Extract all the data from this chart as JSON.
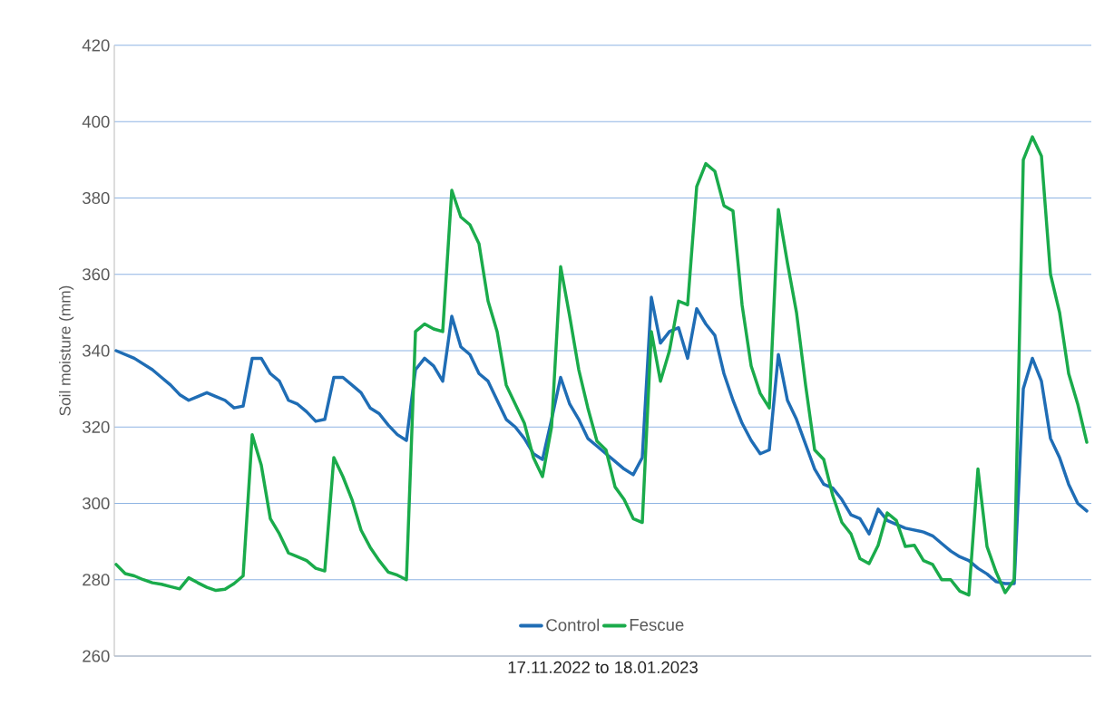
{
  "chart_data": {
    "type": "line",
    "xlabel": "17.11.2022 to 18.01.2023",
    "ylabel": "Soil moisture (mm)",
    "categories": [
      null,
      null,
      null,
      null,
      null,
      null,
      null,
      null,
      null,
      null,
      null,
      null,
      null,
      null,
      null,
      null,
      null,
      null,
      null,
      null,
      null,
      null,
      null,
      null,
      null,
      null,
      null,
      null,
      null,
      null,
      null,
      null,
      null,
      null,
      null,
      null,
      null,
      null,
      null,
      null,
      null,
      null,
      null,
      null,
      null,
      null,
      null,
      null,
      null,
      null,
      null,
      null,
      null,
      null,
      null,
      null,
      null,
      null,
      null,
      null,
      null,
      null,
      null,
      null,
      null,
      null,
      null,
      null,
      null,
      null,
      null,
      null,
      null,
      null,
      null,
      null,
      null,
      null,
      null,
      null,
      null,
      null,
      null,
      null,
      null,
      null,
      null,
      null,
      null,
      null,
      null,
      null,
      null,
      null,
      null,
      null,
      null,
      null,
      null,
      null,
      null,
      null,
      null,
      null,
      null,
      null,
      null,
      null
    ],
    "series": [
      {
        "name": "Control",
        "color": "#1f6db5",
        "values": [
          340,
          339,
          338,
          336.5,
          335,
          333,
          331,
          328.5,
          327,
          328,
          329,
          328,
          327,
          325,
          325.5,
          338,
          338,
          334,
          332,
          327,
          326,
          324,
          321.5,
          322,
          333,
          333,
          331,
          329,
          325,
          323.5,
          320.5,
          318,
          316.5,
          335,
          338,
          336,
          332,
          349,
          341,
          339,
          334,
          332,
          327,
          322,
          320,
          317,
          313,
          311.5,
          322,
          333,
          326,
          322,
          317,
          315,
          313,
          311,
          309,
          307.5,
          312,
          354,
          342,
          345,
          346,
          338,
          351,
          347,
          344,
          334,
          327,
          321,
          316.5,
          313,
          314,
          339,
          327,
          322,
          315.5,
          309,
          305,
          304,
          301,
          297,
          296,
          292,
          298.5,
          295.5,
          294.5,
          293.5,
          293,
          292.5,
          291.5,
          289.5,
          287.5,
          286,
          285,
          283,
          281.5,
          279.5,
          279,
          279,
          330,
          338,
          332,
          317,
          312,
          305,
          300,
          298
        ]
      },
      {
        "name": "Fescue",
        "color": "#1aab4b",
        "values": [
          284,
          281.6,
          281,
          280,
          279.2,
          278.8,
          278.2,
          277.6,
          280.5,
          279.2,
          278,
          277.2,
          277.5,
          279,
          281,
          318,
          310,
          296,
          292,
          287,
          286,
          285,
          283,
          282.3,
          312,
          307,
          301,
          293,
          288.5,
          285,
          282,
          281.2,
          280,
          345,
          347,
          345.7,
          345,
          382,
          375,
          373,
          368,
          353,
          345,
          331,
          326,
          321,
          312,
          307,
          320,
          362,
          349,
          335,
          325,
          316.3,
          314,
          304.3,
          301,
          296,
          295,
          345,
          332,
          340,
          353,
          352,
          383,
          389,
          387,
          378,
          376.6,
          352,
          336,
          328.8,
          325,
          377,
          363,
          350,
          331,
          314,
          311.5,
          302,
          295,
          292,
          285.5,
          284.2,
          289,
          297.5,
          295.5,
          288.7,
          289,
          285,
          284,
          280,
          280,
          277,
          276,
          309,
          288.7,
          282,
          276.6,
          280,
          390,
          396,
          391,
          360,
          350,
          334,
          326,
          316
        ]
      }
    ],
    "ylim": [
      260,
      420
    ],
    "yticks": [
      260,
      280,
      300,
      320,
      340,
      360,
      380,
      400,
      420
    ],
    "grid": "y",
    "legend": "bottom",
    "tick_labels": "y"
  }
}
